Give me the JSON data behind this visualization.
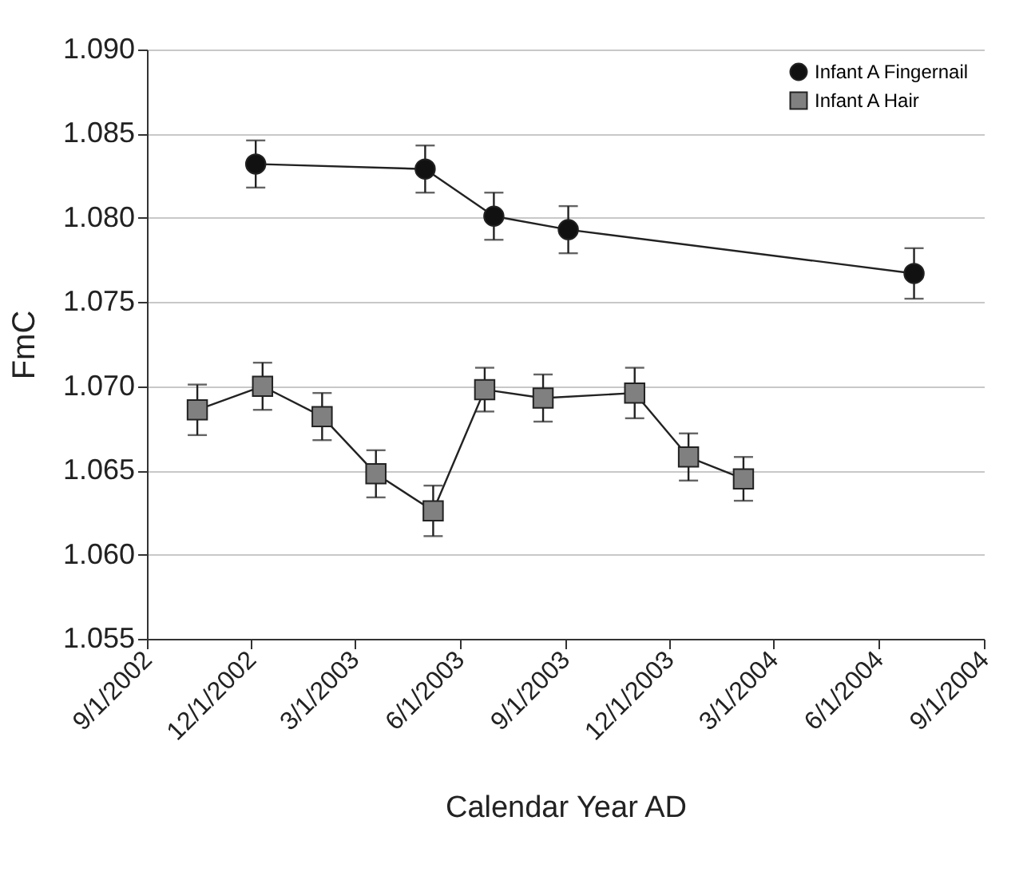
{
  "chart_data": {
    "type": "line",
    "xlabel": "Calendar Year AD",
    "ylabel": "FmC",
    "xlim": [
      "2002-09-01",
      "2004-09-01"
    ],
    "xticks": [
      {
        "value": "2002-09-01",
        "label": "9/1/2002"
      },
      {
        "value": "2002-12-01",
        "label": "12/1/2002"
      },
      {
        "value": "2003-03-01",
        "label": "3/1/2003"
      },
      {
        "value": "2003-06-01",
        "label": "6/1/2003"
      },
      {
        "value": "2003-09-01",
        "label": "9/1/2003"
      },
      {
        "value": "2003-12-01",
        "label": "12/1/2003"
      },
      {
        "value": "2004-03-01",
        "label": "3/1/2004"
      },
      {
        "value": "2004-06-01",
        "label": "6/1/2004"
      },
      {
        "value": "2004-09-01",
        "label": "9/1/2004"
      }
    ],
    "ylim": [
      1.055,
      1.09
    ],
    "yticks": [
      {
        "value": 1.055,
        "label": "1.055"
      },
      {
        "value": 1.06,
        "label": "1.060"
      },
      {
        "value": 1.065,
        "label": "1.065"
      },
      {
        "value": 1.07,
        "label": "1.070"
      },
      {
        "value": 1.075,
        "label": "1.075"
      },
      {
        "value": 1.08,
        "label": "1.080"
      },
      {
        "value": 1.085,
        "label": "1.085"
      },
      {
        "value": 1.09,
        "label": "1.090"
      }
    ],
    "grid": "y",
    "legend": "top right",
    "series": [
      {
        "name": "Infant A Fingernail",
        "color": "#111111",
        "marker": "circle",
        "x": [
          "2002-12-05",
          "2003-05-02",
          "2003-07-01",
          "2003-09-04",
          "2004-07-02"
        ],
        "values": [
          1.0832,
          1.0829,
          1.0801,
          1.0793,
          1.0767
        ],
        "errors": [
          0.0014,
          0.0014,
          0.0014,
          0.0014,
          0.0015
        ]
      },
      {
        "name": "Infant A Hair",
        "color": "#808080",
        "marker": "square",
        "x": [
          "2002-10-15",
          "2002-12-11",
          "2003-02-01",
          "2003-03-20",
          "2003-05-09",
          "2003-06-23",
          "2003-08-13",
          "2003-11-01",
          "2003-12-18",
          "2004-02-04"
        ],
        "values": [
          1.0686,
          1.07,
          1.0682,
          1.0648,
          1.0626,
          1.0698,
          1.0693,
          1.0696,
          1.0658,
          1.0645
        ],
        "errors": [
          0.0015,
          0.0014,
          0.0014,
          0.0014,
          0.0015,
          0.0013,
          0.0014,
          0.0015,
          0.0014,
          0.0013
        ]
      }
    ]
  }
}
